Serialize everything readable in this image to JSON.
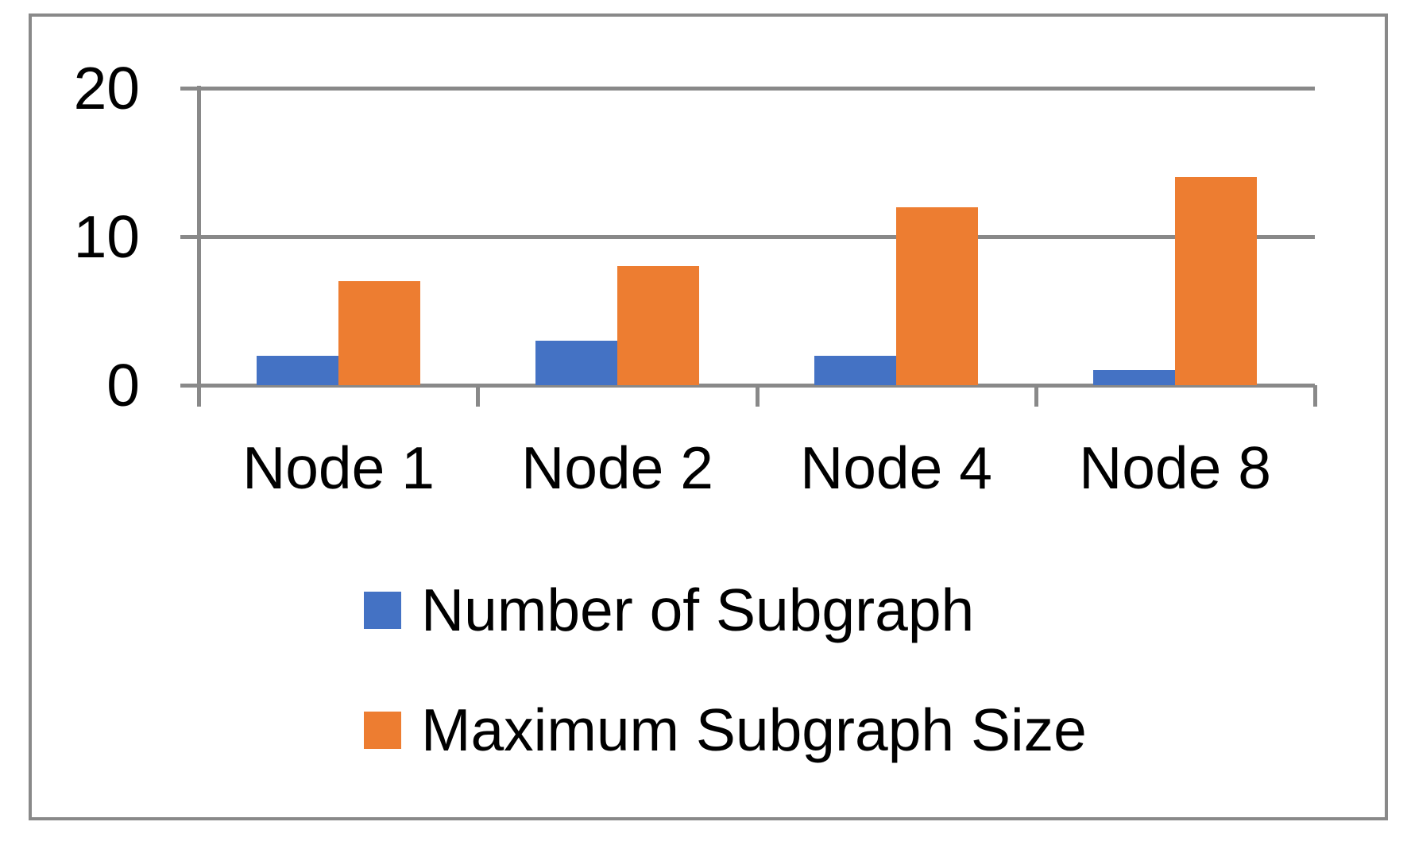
{
  "chart_data": {
    "type": "bar",
    "categories": [
      "Node 1",
      "Node 2",
      "Node 4",
      "Node 8"
    ],
    "series": [
      {
        "name": "Number of Subgraph",
        "color": "#4472C4",
        "values": [
          2,
          3,
          2,
          1
        ]
      },
      {
        "name": "Maximum Subgraph Size",
        "color": "#ED7D31",
        "values": [
          7,
          8,
          12,
          14
        ]
      }
    ],
    "title": "",
    "xlabel": "",
    "ylabel": "",
    "ylim": [
      0,
      20
    ],
    "yticks": [
      0,
      10,
      20
    ],
    "ytick_labels": [
      "0",
      "10",
      "20"
    ],
    "grid": "horizontal",
    "legend_position": "bottom-left",
    "axis_color": "#898989",
    "text_color": "#000000",
    "background_color": "#ffffff"
  }
}
